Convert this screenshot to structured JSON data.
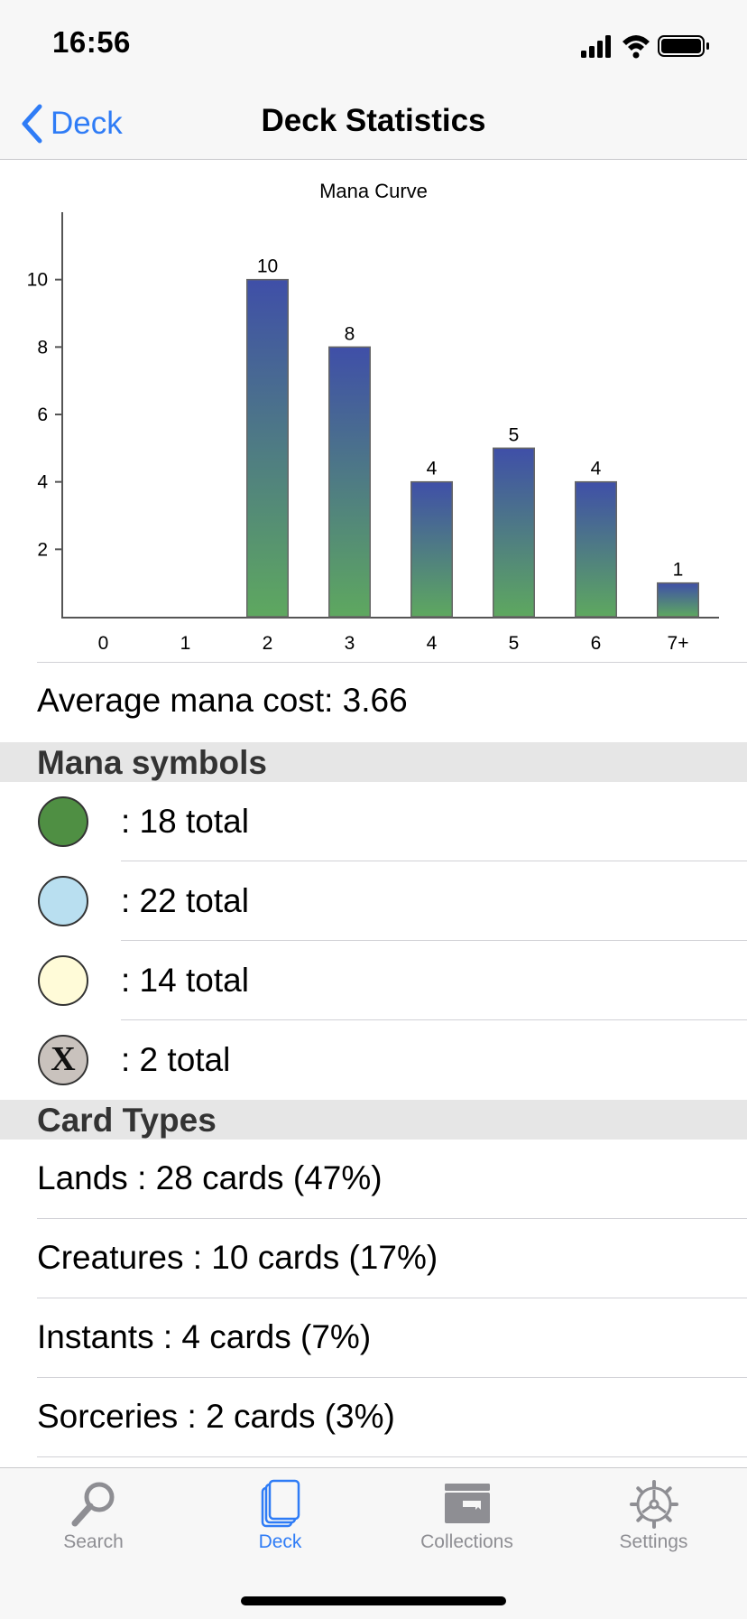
{
  "status_bar": {
    "time": "16:56"
  },
  "nav": {
    "back_label": "Deck",
    "title": "Deck Statistics"
  },
  "chart_data": {
    "type": "bar",
    "title": "Mana Curve",
    "categories": [
      "0",
      "1",
      "2",
      "3",
      "4",
      "5",
      "6",
      "7+"
    ],
    "values": [
      0,
      0,
      10,
      8,
      4,
      5,
      4,
      1
    ],
    "ylim": [
      0,
      12
    ],
    "yticks": [
      2,
      4,
      6,
      8,
      10
    ],
    "gradient_top": "#3f4fa8",
    "gradient_bottom": "#5ea85f"
  },
  "average": {
    "text": "Average mana cost: 3.66"
  },
  "mana_section": {
    "title": "Mana symbols"
  },
  "mana_symbols": [
    {
      "icon": "green-mana-icon",
      "color": "#4f8f43",
      "text": ": 18 total"
    },
    {
      "icon": "blue-mana-icon",
      "color": "#b9dff0",
      "text": ": 22 total"
    },
    {
      "icon": "white-mana-icon",
      "color": "#fffbd8",
      "text": ": 14 total"
    },
    {
      "icon": "x-mana-icon",
      "color": "#c9c2bd",
      "glyph": "X",
      "text": ": 2 total"
    }
  ],
  "types_section": {
    "title": "Card Types"
  },
  "card_types": [
    "Lands : 28 cards (47%)",
    "Creatures : 10 cards (17%)",
    "Instants : 4 cards (7%)",
    "Sorceries : 2 cards (3%)"
  ],
  "tabs": [
    {
      "label": "Search",
      "icon": "search-icon"
    },
    {
      "label": "Deck",
      "icon": "deck-icon",
      "active": true
    },
    {
      "label": "Collections",
      "icon": "collections-icon"
    },
    {
      "label": "Settings",
      "icon": "settings-icon"
    }
  ],
  "colors": {
    "accent": "#2f7cf6",
    "inactive": "#8e8e93"
  }
}
